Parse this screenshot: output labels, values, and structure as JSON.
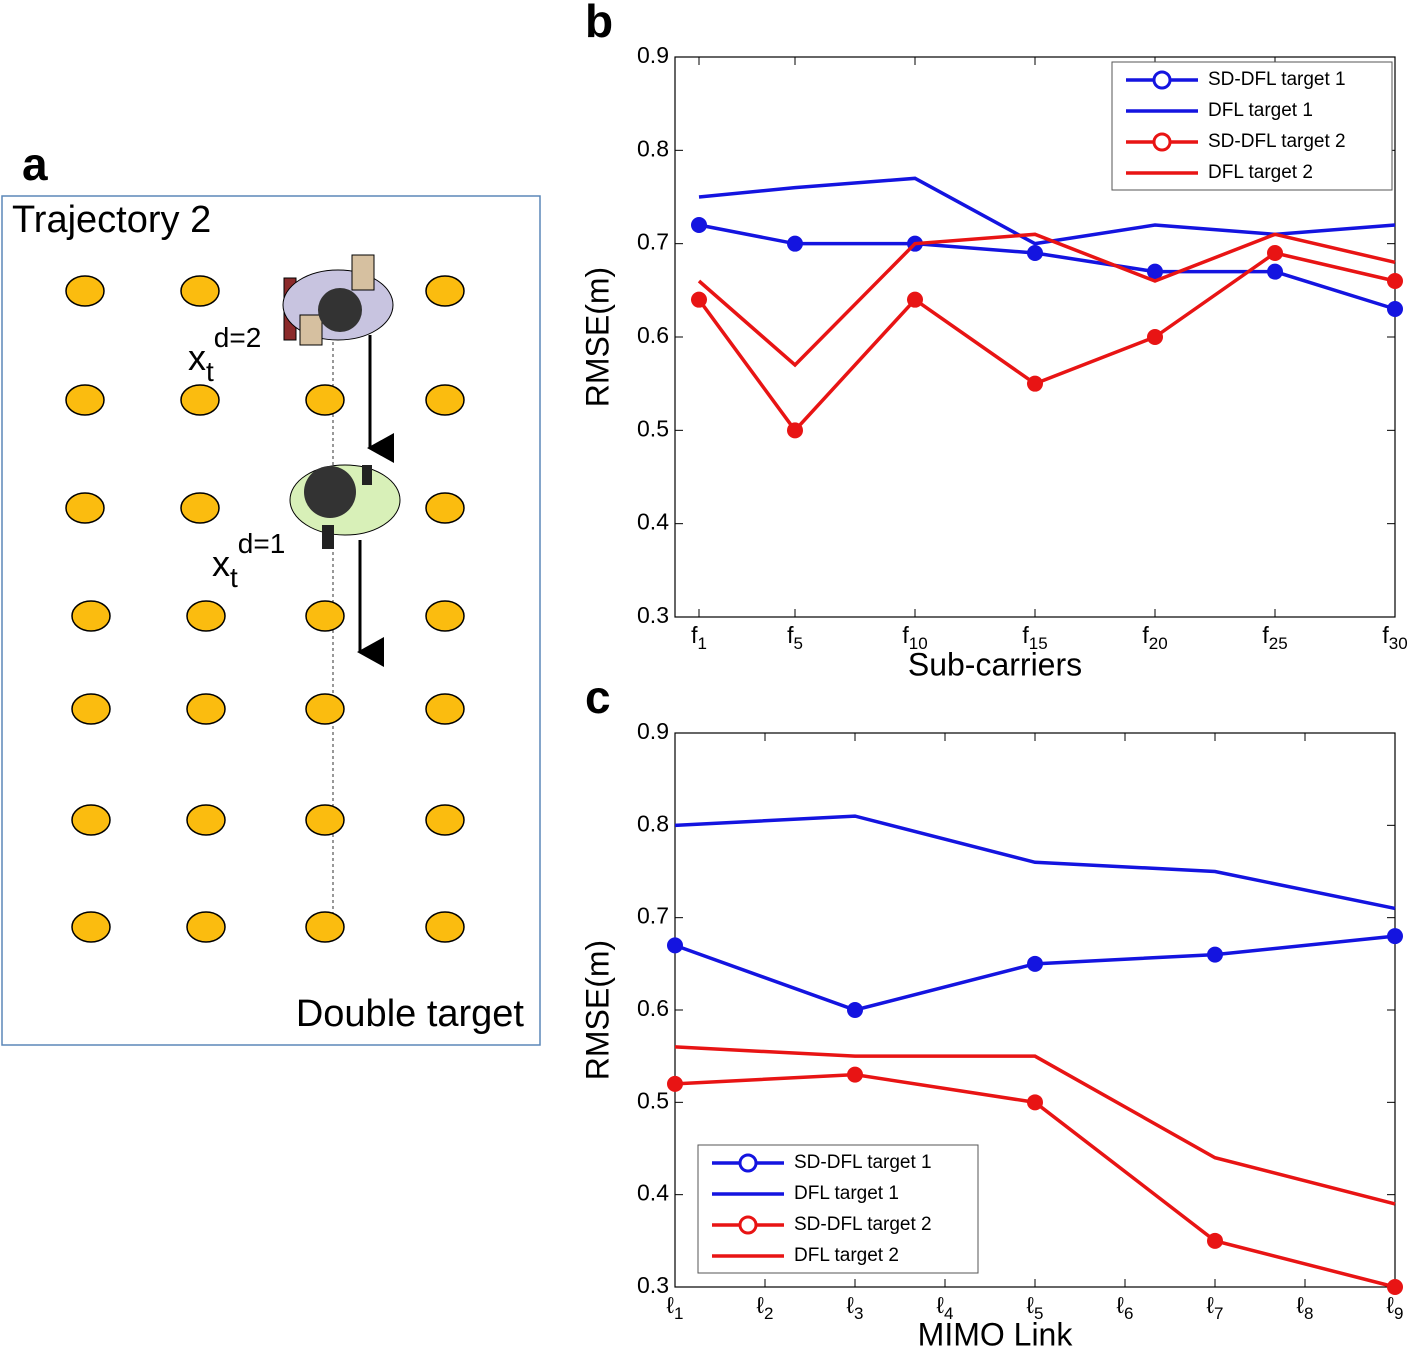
{
  "diagram": {
    "panel_label": "a",
    "title": "Trajectory 2",
    "caption": "Double target",
    "targets": [
      {
        "base": "x",
        "sub": "t",
        "sup": "d=2"
      },
      {
        "base": "x",
        "sub": "t",
        "sup": "d=1"
      }
    ]
  },
  "chart_data": [
    {
      "type": "line",
      "panel_label": "b",
      "x_label": "Sub-carriers",
      "y_label": "RMSE(m)",
      "x": [
        1,
        5,
        10,
        15,
        20,
        25,
        30
      ],
      "xlim": [
        0,
        30
      ],
      "xticks": [
        {
          "value": 1,
          "label": "f1"
        },
        {
          "value": 5,
          "label": "f5"
        },
        {
          "value": 10,
          "label": "f10"
        },
        {
          "value": 15,
          "label": "f15"
        },
        {
          "value": 20,
          "label": "f20"
        },
        {
          "value": 25,
          "label": "f25"
        },
        {
          "value": 30,
          "label": "f30"
        }
      ],
      "ylim": [
        0.3,
        0.9
      ],
      "yticks": [
        0.3,
        0.4,
        0.5,
        0.6,
        0.7,
        0.8,
        0.9
      ],
      "legend": "upper right",
      "series": [
        {
          "name": "SD-DFL target 1",
          "color": "#1414e0",
          "marker": "o",
          "values": [
            0.72,
            0.7,
            0.7,
            0.69,
            0.67,
            0.67,
            0.63
          ]
        },
        {
          "name": "DFL target 1",
          "color": "#1414e0",
          "values": [
            0.75,
            0.76,
            0.77,
            0.7,
            0.72,
            0.71,
            0.72
          ]
        },
        {
          "name": "SD-DFL target 2",
          "color": "#e81414",
          "marker": "o",
          "values": [
            0.64,
            0.5,
            0.64,
            0.55,
            0.6,
            0.69,
            0.66
          ]
        },
        {
          "name": "DFL target 2",
          "color": "#e81414",
          "values": [
            0.66,
            0.57,
            0.7,
            0.71,
            0.66,
            0.71,
            0.68
          ]
        }
      ]
    },
    {
      "type": "line",
      "panel_label": "c",
      "x_label": "MIMO Link",
      "y_label": "RMSE(m)",
      "x": [
        1,
        3,
        5,
        7,
        9
      ],
      "xlim": [
        1,
        9
      ],
      "xticks": [
        {
          "value": 1,
          "label": "ℓ1"
        },
        {
          "value": 2,
          "label": "ℓ2"
        },
        {
          "value": 3,
          "label": "ℓ3"
        },
        {
          "value": 4,
          "label": "ℓ4"
        },
        {
          "value": 5,
          "label": "ℓ5"
        },
        {
          "value": 6,
          "label": "ℓ6"
        },
        {
          "value": 7,
          "label": "ℓ7"
        },
        {
          "value": 8,
          "label": "ℓ8"
        },
        {
          "value": 9,
          "label": "ℓ9"
        }
      ],
      "ylim": [
        0.3,
        0.9
      ],
      "yticks": [
        0.3,
        0.4,
        0.5,
        0.6,
        0.7,
        0.8,
        0.9
      ],
      "legend": "lower left",
      "series": [
        {
          "name": "SD-DFL target 1",
          "color": "#1414e0",
          "marker": "o",
          "values": [
            0.67,
            0.6,
            0.65,
            0.66,
            0.68
          ]
        },
        {
          "name": "DFL target 1",
          "color": "#1414e0",
          "values": [
            0.8,
            0.81,
            0.76,
            0.75,
            0.71
          ]
        },
        {
          "name": "SD-DFL target 2",
          "color": "#e81414",
          "marker": "o",
          "values": [
            0.52,
            0.53,
            0.5,
            0.35,
            0.3
          ]
        },
        {
          "name": "DFL target 2",
          "color": "#e81414",
          "values": [
            0.56,
            0.55,
            0.55,
            0.44,
            0.39
          ]
        }
      ]
    }
  ]
}
